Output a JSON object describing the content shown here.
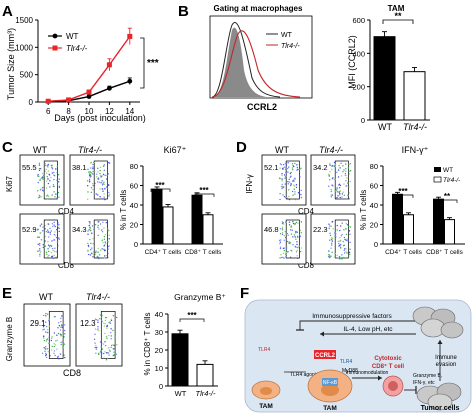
{
  "panels": {
    "A": {
      "letter": "A",
      "ylabel": "Tumor Size (mm³)",
      "xlabel": "Days (post inoculation)",
      "legend": [
        "WT",
        "Tlr4-/-"
      ],
      "significance": "***"
    },
    "B": {
      "letter": "B",
      "title": "Gating at macrophages",
      "xlabel": "CCRL2",
      "legend": [
        "WT",
        "Tlr4-/-"
      ],
      "bar_title": "TAM",
      "ylabel": "MFI (CCRL2)",
      "significance": "**"
    },
    "C": {
      "letter": "C",
      "flow_row_labels": [
        "WT",
        "Tlr4-/-"
      ],
      "flow_ylabel": "Ki67",
      "flow_xlabel_top": "CD4",
      "flow_xlabel_bottom": "CD8",
      "gates": [
        "55.5",
        "38.1",
        "52.9",
        "34.3"
      ],
      "bar_title": "Ki67⁺",
      "ylabel": "% in T cells",
      "significance": [
        "***",
        "***"
      ]
    },
    "D": {
      "letter": "D",
      "flow_row_labels": [
        "WT",
        "Tlr4-/-"
      ],
      "flow_ylabel": "IFN-γ",
      "flow_xlabel_top": "CD4",
      "flow_xlabel_bottom": "CD8",
      "gates": [
        "52.1",
        "34.2",
        "46.8",
        "22.3"
      ],
      "bar_title": "IFN-γ⁺",
      "ylabel": "% in T cells",
      "legend": [
        "WT",
        "Tlr4-/-"
      ],
      "significance": [
        "***",
        "**"
      ]
    },
    "E": {
      "letter": "E",
      "flow_row_labels": [
        "WT",
        "Tlr4-/-"
      ],
      "flow_ylabel": "Granzyme B",
      "flow_xlabel": "CD8",
      "gates": [
        "29.1",
        "12.3"
      ],
      "bar_title": "Granzyme B⁺",
      "ylabel": "% in CD8⁺ T cells",
      "significance": "***"
    },
    "F": {
      "letter": "F",
      "labels": {
        "immuno": "Immunosuppressive factors",
        "il4": "IL-4, Low pH, etc",
        "ccrl2": "CCRL2",
        "tlr4_a": "TLR4",
        "tlr4_b": "TLR4",
        "tlr4_agonists": "TLR4 agonists",
        "myd88": "MyD88",
        "nfkb": "NF-κB",
        "tam_left": "TAM",
        "tam_center": "TAM",
        "immunomod": "Immunomodulation",
        "cytotoxic": "Cytotoxic",
        "cd8t": "CD8⁺ T cell",
        "granzyme": "Granzyme B,",
        "ifn": "IFN-γ, etc",
        "immune": "Immune",
        "evasion": "evasion",
        "tumor": "Tumor cells"
      }
    }
  },
  "chart_data": [
    {
      "panel": "A",
      "type": "line",
      "x": [
        6,
        8,
        10,
        12,
        14
      ],
      "xticks": [
        6,
        8,
        10,
        12,
        14
      ],
      "yticks": [
        0,
        500,
        1000,
        1500
      ],
      "ylim": [
        0,
        1500
      ],
      "series": [
        {
          "name": "WT",
          "values": [
            12,
            25,
            100,
            250,
            380
          ],
          "errors": [
            5,
            8,
            20,
            40,
            60
          ],
          "color": "#000000"
        },
        {
          "name": "Tlr4-/-",
          "values": [
            14,
            38,
            180,
            680,
            1200
          ],
          "errors": [
            6,
            12,
            40,
            110,
            150
          ],
          "color": "#e8262a"
        }
      ]
    },
    {
      "panel": "B-hist",
      "type": "area",
      "xlabel": "CCRL2"
    },
    {
      "panel": "B",
      "type": "bar",
      "categories": [
        "WT",
        "Tlr4-/-"
      ],
      "values": [
        500,
        290
      ],
      "errors": [
        30,
        25
      ],
      "yticks": [
        0,
        200,
        400,
        600
      ],
      "ylim": [
        0,
        600
      ]
    },
    {
      "panel": "C",
      "type": "bar",
      "categories": [
        "CD4⁺ T cells",
        "CD8⁺ T cells"
      ],
      "yticks": [
        0,
        20,
        40,
        60,
        80
      ],
      "ylim": [
        0,
        80
      ],
      "series": [
        {
          "name": "WT",
          "values": [
            56,
            50
          ],
          "errors": [
            2.5,
            2.5
          ]
        },
        {
          "name": "Tlr4-/-",
          "values": [
            38,
            30
          ],
          "errors": [
            2.5,
            2
          ]
        }
      ]
    },
    {
      "panel": "D",
      "type": "bar",
      "categories": [
        "CD4⁺ T cells",
        "CD8⁺ T cells"
      ],
      "yticks": [
        0,
        20,
        40,
        60,
        80
      ],
      "ylim": [
        0,
        80
      ],
      "series": [
        {
          "name": "WT",
          "values": [
            51,
            46
          ],
          "errors": [
            2,
            2
          ]
        },
        {
          "name": "Tlr4-/-",
          "values": [
            30,
            25
          ],
          "errors": [
            2,
            2
          ]
        }
      ]
    },
    {
      "panel": "E",
      "type": "bar",
      "categories": [
        "WT",
        "Tlr4-/-"
      ],
      "values": [
        29,
        12
      ],
      "errors": [
        2,
        2
      ],
      "yticks": [
        0,
        10,
        20,
        30,
        40
      ],
      "ylim": [
        0,
        40
      ]
    }
  ]
}
